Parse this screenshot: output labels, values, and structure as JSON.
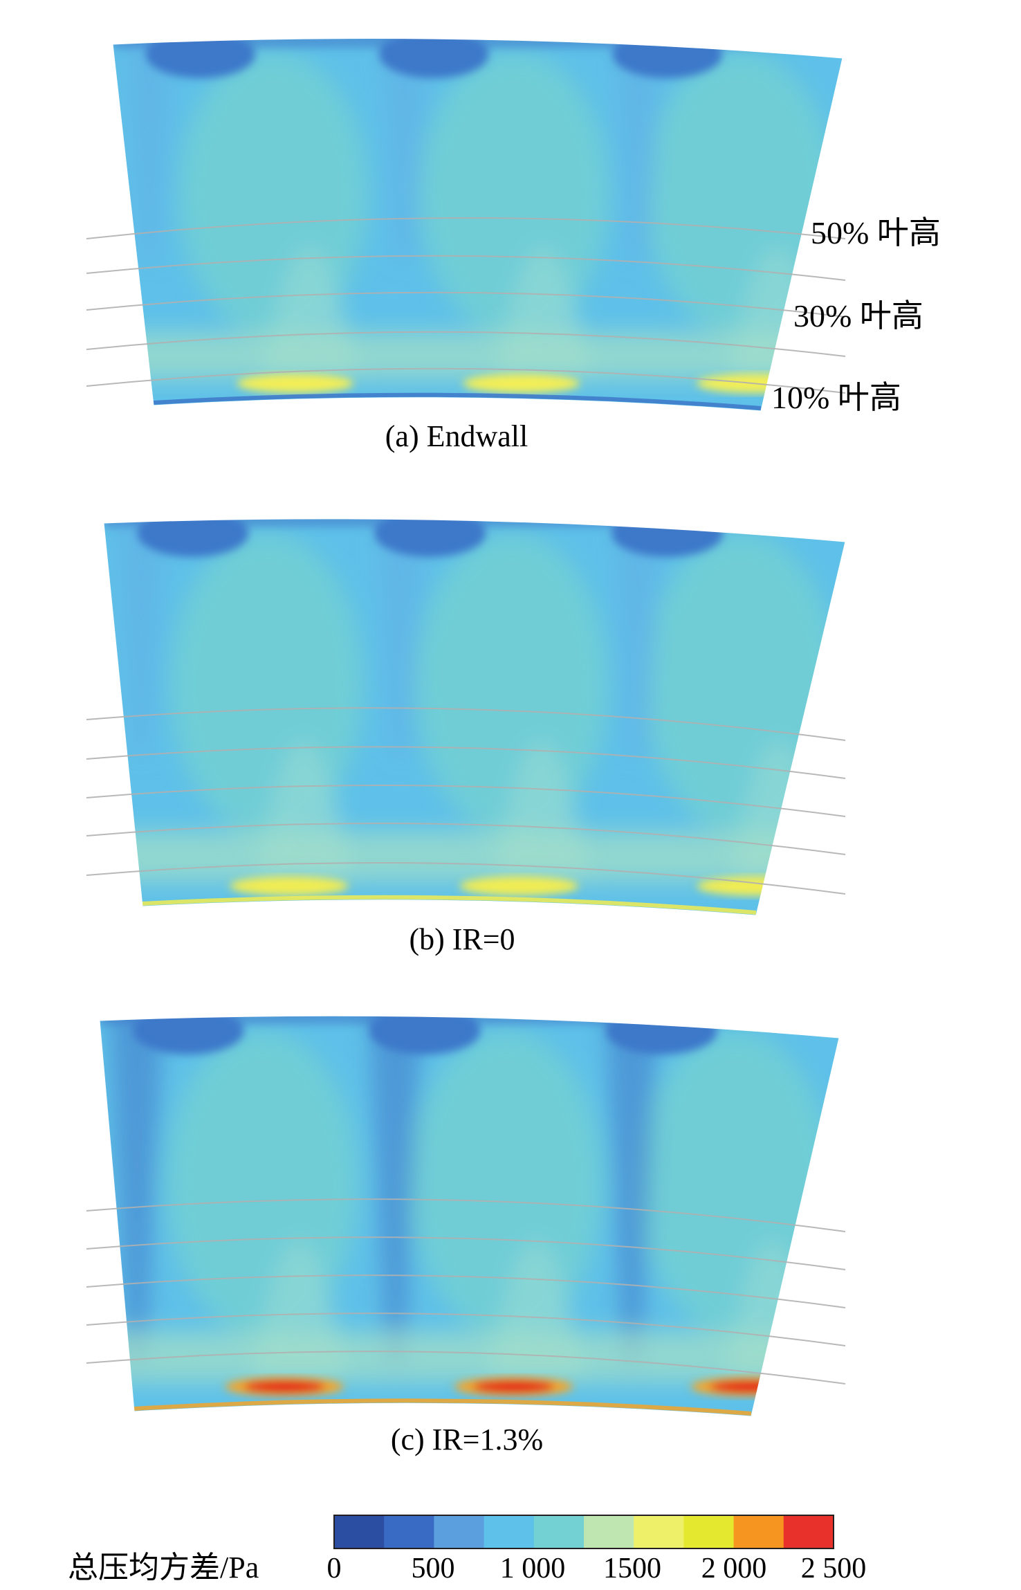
{
  "panels": [
    {
      "id": "a",
      "caption": "(a) Endwall",
      "hotspot": "#f3ee57",
      "hotspot_core": null
    },
    {
      "id": "b",
      "caption": "(b) IR=0",
      "hotspot": "#f1ec52",
      "hotspot_core": null
    },
    {
      "id": "c",
      "caption": "(c) IR=1.3%",
      "hotspot": "#f3a52a",
      "hotspot_core": "#e3241f"
    }
  ],
  "height_labels": [
    "50% 叶高",
    "30% 叶高",
    "10% 叶高"
  ],
  "legend": {
    "title": "总压均方差/Pa",
    "ticks": [
      "0",
      "500",
      "1 000",
      "1500",
      "2 000",
      "2 500"
    ],
    "colors": [
      "#2b4ea3",
      "#3a6bc4",
      "#5b9fde",
      "#5ec1e9",
      "#73d1d4",
      "#bfe6b0",
      "#eef06a",
      "#e4e82e",
      "#f6951f",
      "#e8312a"
    ]
  },
  "colors": {
    "base": "#5fc1e9",
    "channel": "#6fcdd6",
    "wake": "#62b4e6",
    "dark": "#3e78c9",
    "light": "#8fd7d4",
    "band": "#a5dfc6",
    "line": "#b0b0b0"
  }
}
